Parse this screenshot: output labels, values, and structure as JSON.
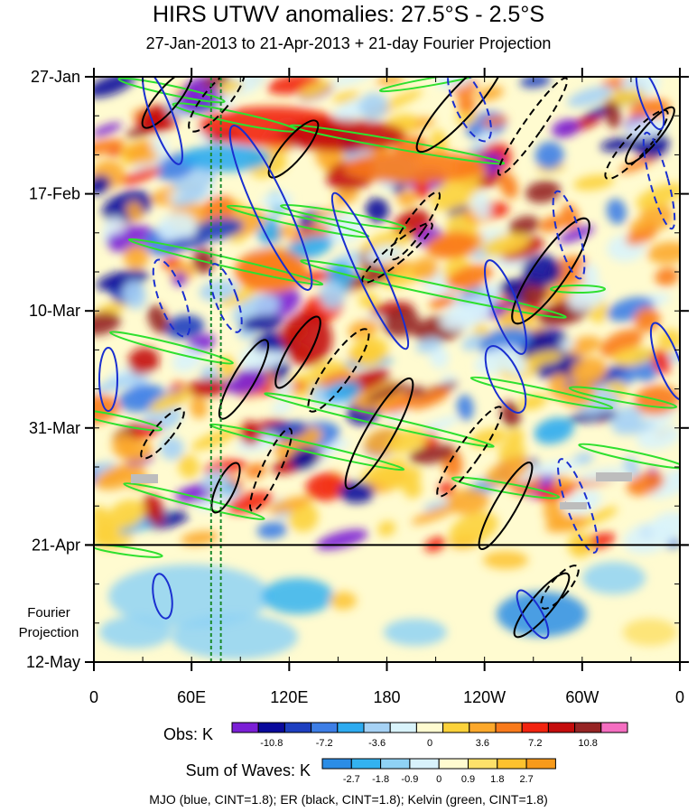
{
  "chart_data": {
    "type": "heatmap",
    "title": "HIRS UTWV anomalies: 27.5°S - 2.5°S",
    "subtitle": "27-Jan-2013 to 21-Apr-2013 + 21-day Fourier Projection",
    "x_ticks": [
      "0",
      "60E",
      "120E",
      "180",
      "120W",
      "60W",
      "0"
    ],
    "x_tick_values": [
      0,
      60,
      120,
      180,
      240,
      300,
      360
    ],
    "y_ticks": [
      "27-Jan",
      "17-Feb",
      "10-Mar",
      "31-Mar",
      "21-Apr",
      "12-May"
    ],
    "y_tick_days": [
      0,
      21,
      42,
      63,
      84,
      105
    ],
    "observation_end": "21-Apr",
    "projection_label_line1": "Fourier",
    "projection_label_line2": "Projection",
    "reference_lines_lon": [
      72,
      78
    ],
    "obs_colorbar": {
      "label": "Obs: K",
      "tick_labels": [
        "-10.8",
        "-7.2",
        "-3.6",
        "0",
        "3.6",
        "7.2",
        "10.8"
      ],
      "tick_values": [
        -10.8,
        -7.2,
        -3.6,
        0,
        3.6,
        7.2,
        10.8
      ],
      "colors": [
        "#7b1fd6",
        "#0a0a9c",
        "#1d3fc0",
        "#3d7ee6",
        "#2dabf0",
        "#a6d2f5",
        "#d9f3fb",
        "#fffbd0",
        "#fcd23a",
        "#fca82b",
        "#f97a1b",
        "#f2230f",
        "#c40c0c",
        "#962424",
        "#f56ec1"
      ]
    },
    "waves_colorbar": {
      "label": "Sum of Waves: K",
      "tick_labels": [
        "-2.7",
        "-1.8",
        "-0.9",
        "0",
        "0.9",
        "1.8",
        "2.7"
      ],
      "tick_values": [
        -2.7,
        -1.8,
        -0.9,
        0,
        0.9,
        1.8,
        2.7
      ],
      "colors": [
        "#2b8de6",
        "#33b2f0",
        "#8fd2f5",
        "#d8f2fb",
        "#fffbd0",
        "#fde16a",
        "#fdc22e",
        "#f79a1a"
      ]
    },
    "contours": [
      {
        "name": "MJO",
        "color": "#1a2fd0",
        "cint": 1.8
      },
      {
        "name": "ER",
        "color": "#000000",
        "cint": 1.8
      },
      {
        "name": "Kelvin",
        "color": "#2fe02f",
        "cint": 1.8
      }
    ],
    "footer": "MJO (blue, CINT=1.8); ER (black, CINT=1.8); Kelvin (green, CINT=1.8)",
    "xlim": [
      0,
      360
    ],
    "ylim_days": [
      0,
      105
    ]
  }
}
